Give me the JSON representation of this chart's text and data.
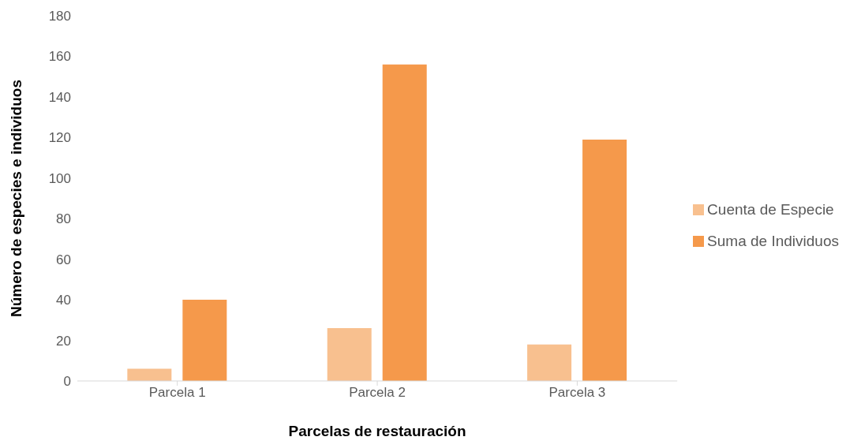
{
  "chart_data": {
    "type": "bar",
    "xlabel": "Parcelas de restauración",
    "ylabel": "Número de especies e individuos",
    "categories": [
      "Parcela 1",
      "Parcela 2",
      "Parcela 3"
    ],
    "series": [
      {
        "name": "Cuenta de Especie",
        "color": "#f8c08f",
        "values": [
          6,
          26,
          18
        ]
      },
      {
        "name": "Suma de Individuos",
        "color": "#f5994b",
        "values": [
          40,
          156,
          119
        ]
      }
    ],
    "ylim": [
      0,
      180
    ],
    "yticks": [
      0,
      20,
      40,
      60,
      80,
      100,
      120,
      140,
      160,
      180
    ],
    "grid": false,
    "legend": "right"
  }
}
